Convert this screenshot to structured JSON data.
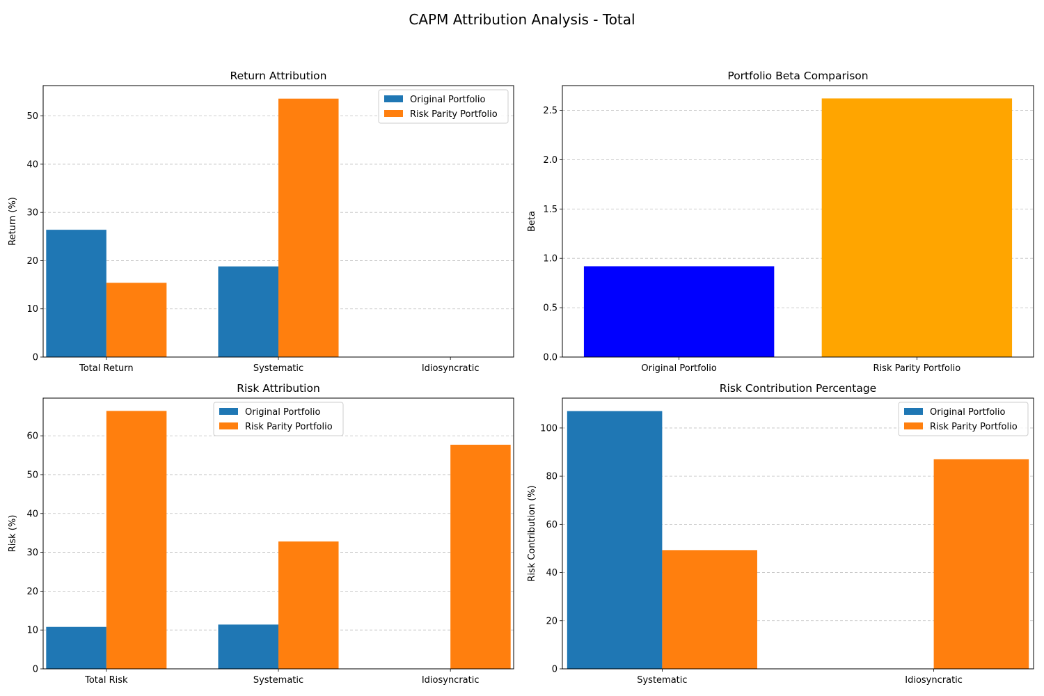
{
  "figure_title": "CAPM Attribution Analysis - Total",
  "chart_data": [
    {
      "id": "return-attribution",
      "type": "bar",
      "title": "Return Attribution",
      "xlabel": "",
      "ylabel": "Return (%)",
      "categories": [
        "Total Return",
        "Systematic",
        "Idiosyncratic"
      ],
      "series": [
        {
          "name": "Original Portfolio",
          "color": "#1f77b4",
          "values": [
            26.4,
            18.8,
            0
          ]
        },
        {
          "name": "Risk Parity Portfolio",
          "color": "#ff7f0e",
          "values": [
            15.4,
            53.6,
            0
          ]
        }
      ],
      "ylim": [
        0,
        56.3
      ],
      "yticks": [
        0,
        10,
        20,
        30,
        40,
        50
      ],
      "grid": "y-dashed",
      "legend": "top-right"
    },
    {
      "id": "beta-comparison",
      "type": "bar",
      "title": "Portfolio Beta Comparison",
      "xlabel": "",
      "ylabel": "Beta",
      "categories": [
        "Original Portfolio",
        "Risk Parity Portfolio"
      ],
      "series": [
        {
          "name": "",
          "colors": [
            "#0000ff",
            "#ffa500"
          ],
          "values": [
            0.92,
            2.62
          ]
        }
      ],
      "ylim": [
        0,
        2.75
      ],
      "yticks": [
        0.0,
        0.5,
        1.0,
        1.5,
        2.0,
        2.5
      ],
      "ytick_decimals": 1,
      "grid": "y-dashed",
      "legend": "none"
    },
    {
      "id": "risk-attribution",
      "type": "bar",
      "title": "Risk Attribution",
      "xlabel": "",
      "ylabel": "Risk (%)",
      "categories": [
        "Total Risk",
        "Systematic",
        "Idiosyncratic"
      ],
      "series": [
        {
          "name": "Original Portfolio",
          "color": "#1f77b4",
          "values": [
            10.8,
            11.4,
            0
          ]
        },
        {
          "name": "Risk Parity Portfolio",
          "color": "#ff7f0e",
          "values": [
            66.4,
            32.8,
            57.7
          ]
        }
      ],
      "ylim": [
        0,
        69.7
      ],
      "yticks": [
        0,
        10,
        20,
        30,
        40,
        50,
        60
      ],
      "grid": "y-dashed",
      "legend": "top-center"
    },
    {
      "id": "risk-contribution",
      "type": "bar",
      "title": "Risk Contribution Percentage",
      "xlabel": "",
      "ylabel": "Risk Contribution (%)",
      "categories": [
        "Systematic",
        "Idiosyncratic"
      ],
      "series": [
        {
          "name": "Original Portfolio",
          "color": "#1f77b4",
          "values": [
            107.0,
            0
          ]
        },
        {
          "name": "Risk Parity Portfolio",
          "color": "#ff7f0e",
          "values": [
            49.3,
            87.0
          ]
        }
      ],
      "ylim": [
        0,
        112.4
      ],
      "yticks": [
        0,
        20,
        40,
        60,
        80,
        100
      ],
      "grid": "y-dashed",
      "legend": "top-right"
    }
  ]
}
